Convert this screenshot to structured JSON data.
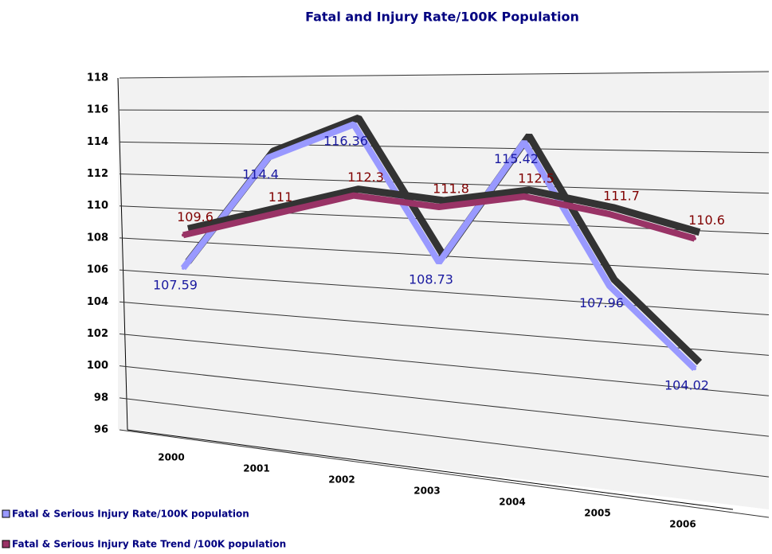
{
  "chart_data": {
    "type": "line",
    "title": "Fatal and Injury Rate/100K Population",
    "categories": [
      "2000",
      "2001",
      "2002",
      "2003",
      "2004",
      "2005",
      "2006"
    ],
    "series": [
      {
        "name": "Fatal & Serious Injury Rate/100K population",
        "color": "#9999ff",
        "label_color": "#1a1aa0",
        "values": [
          107.59,
          114.4,
          116.36,
          108.73,
          115.42,
          107.96,
          104.02
        ]
      },
      {
        "name": "Fatal & Serious Injury Rate Trend /100K population",
        "color": "#993366",
        "label_color": "#800000",
        "values": [
          109.6,
          111.0,
          112.3,
          111.8,
          112.5,
          111.7,
          110.6
        ]
      }
    ],
    "ylim": [
      96,
      118
    ],
    "yticks": [
      96,
      98,
      100,
      102,
      104,
      106,
      108,
      110,
      112,
      114,
      116,
      118
    ],
    "grid": true
  }
}
